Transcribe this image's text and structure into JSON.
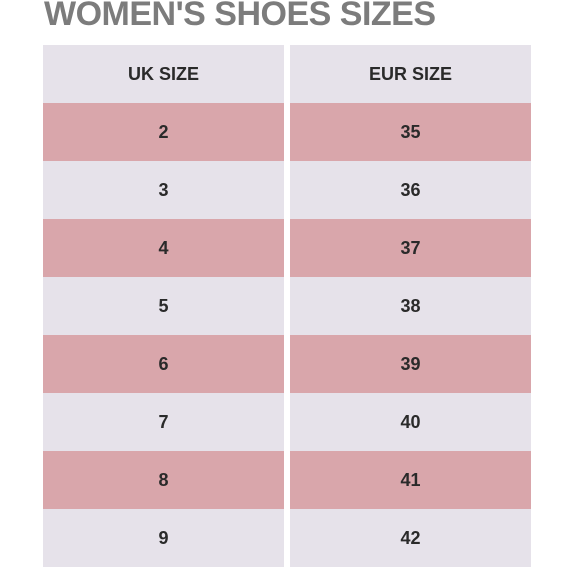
{
  "title": "WOMEN'S SHOES SIZES",
  "table": {
    "headers": [
      "UK SIZE",
      "EUR SIZE"
    ],
    "rows": [
      {
        "uk": "2",
        "eur": "35"
      },
      {
        "uk": "3",
        "eur": "36"
      },
      {
        "uk": "4",
        "eur": "37"
      },
      {
        "uk": "5",
        "eur": "38"
      },
      {
        "uk": "6",
        "eur": "39"
      },
      {
        "uk": "7",
        "eur": "40"
      },
      {
        "uk": "8",
        "eur": "41"
      },
      {
        "uk": "9",
        "eur": "42"
      }
    ]
  },
  "colors": {
    "title": "#7c7c7c",
    "header_bg": "#e6e2ea",
    "row_pink": "#d9a6ab",
    "row_light": "#e6e2ea",
    "text": "#2a2a2a"
  }
}
